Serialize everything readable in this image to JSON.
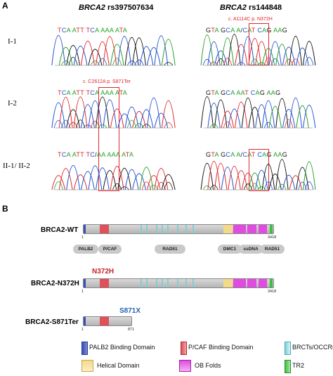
{
  "panel_a": {
    "letter": "A",
    "left_title_gene": "BRCA2",
    "left_title_variant": "rs397507634",
    "right_title_gene": "BRCA2",
    "right_title_variant": "rs144848",
    "rows": [
      {
        "label": "I-1",
        "left_seq": "TCA ATT TCA AAA ATA",
        "right_seq": "GTA GCA A/CAT CAG AAG"
      },
      {
        "label": "I-2",
        "left_seq": "TCA ATT TCA AAA ATA",
        "right_seq": "GTA GCA AAT CAG AAG"
      },
      {
        "label": "II-1/ II-2",
        "left_seq": "TCA ATT TC/AA AAA ATA",
        "right_seq": "GTA GCA A/CAT CAG AAG"
      }
    ],
    "left_mutation": "c. C2612A p. S871Ter",
    "right_mutation": "c. A1114C p. N372H"
  },
  "panel_b": {
    "letter": "B",
    "proteins": [
      {
        "name": "BRCA2-WT",
        "start": "1",
        "end": "3418"
      },
      {
        "name": "BRCA2-N372H",
        "start": "1",
        "end": "3418",
        "mutation": "N372H"
      },
      {
        "name": "BRCA2-S871Ter",
        "start": "1",
        "end": "871",
        "mutation": "S871X"
      }
    ],
    "binding_partners": [
      "PALB2",
      "P/CAF",
      "RAD51",
      "DMC1",
      "ssDNA",
      "RAD51"
    ],
    "legend": [
      {
        "label": "PALB2 Binding Domain",
        "color": "#3a4fb8"
      },
      {
        "label": "P/CAF Binding Domain",
        "color": "#e0505a"
      },
      {
        "label": "BRCTs/OCCRs",
        "color": "#7ed0d8"
      },
      {
        "label": "Helical Domain",
        "color": "#f3d98a"
      },
      {
        "label": "OB Folds",
        "color": "#e04be0"
      },
      {
        "label": "TR2",
        "color": "#3fbf3f"
      }
    ]
  }
}
